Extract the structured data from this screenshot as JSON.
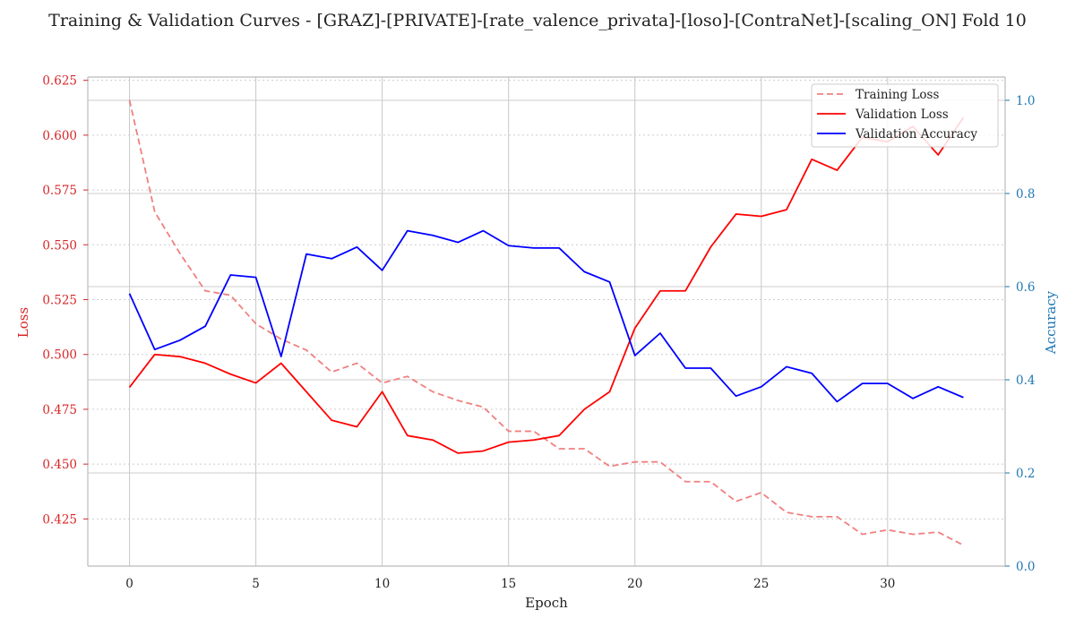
{
  "chart_data": {
    "type": "line",
    "title": "Training & Validation Curves - [GRAZ]-[PRIVATE]-[rate_valence_privata]-[loso]-[ContraNet]-[scaling_ON] Fold 10",
    "xlabel": "Epoch",
    "ylabel_left": "Loss",
    "ylabel_right": "Accuracy",
    "xlim": [
      -1.65,
      34.65
    ],
    "ylim_left": [
      0.4035,
      0.6265
    ],
    "ylim_right": [
      0.0,
      1.05
    ],
    "x_ticks": [
      0,
      5,
      10,
      15,
      20,
      25,
      30
    ],
    "y_left_ticks": [
      0.425,
      0.45,
      0.475,
      0.5,
      0.525,
      0.55,
      0.575,
      0.6,
      0.625
    ],
    "y_right_ticks": [
      0.0,
      0.2,
      0.4,
      0.6,
      0.8,
      1.0
    ],
    "epochs": [
      0,
      1,
      2,
      3,
      4,
      5,
      6,
      7,
      8,
      9,
      10,
      11,
      12,
      13,
      14,
      15,
      16,
      17,
      18,
      19,
      20,
      21,
      22,
      23,
      24,
      25,
      26,
      27,
      28,
      29,
      30,
      31,
      32,
      33
    ],
    "series": [
      {
        "name": "Training Loss",
        "axis": "left",
        "color": "#F08080",
        "style": "dashed",
        "values": [
          0.616,
          0.565,
          0.546,
          0.529,
          0.527,
          0.514,
          0.507,
          0.502,
          0.492,
          0.496,
          0.487,
          0.49,
          0.483,
          0.479,
          0.476,
          0.465,
          0.465,
          0.457,
          0.457,
          0.449,
          0.451,
          0.451,
          0.442,
          0.442,
          0.433,
          0.437,
          0.428,
          0.426,
          0.426,
          0.418,
          0.42,
          0.418,
          0.419,
          0.413
        ]
      },
      {
        "name": "Validation Loss",
        "axis": "left",
        "color": "#FF0000",
        "style": "solid",
        "values": [
          0.485,
          0.5,
          0.499,
          0.496,
          0.491,
          0.487,
          0.496,
          0.483,
          0.47,
          0.467,
          0.483,
          0.463,
          0.461,
          0.455,
          0.456,
          0.46,
          0.461,
          0.463,
          0.475,
          0.483,
          0.512,
          0.529,
          0.529,
          0.549,
          0.564,
          0.563,
          0.566,
          0.589,
          0.584,
          0.599,
          0.597,
          0.604,
          0.591,
          0.608
        ]
      },
      {
        "name": "Validation Accuracy",
        "axis": "right",
        "color": "#0000FF",
        "style": "solid",
        "values": [
          0.585,
          0.465,
          0.485,
          0.515,
          0.625,
          0.62,
          0.45,
          0.67,
          0.66,
          0.685,
          0.635,
          0.72,
          0.71,
          0.695,
          0.72,
          0.688,
          0.683,
          0.683,
          0.632,
          0.61,
          0.452,
          0.5,
          0.425,
          0.425,
          0.365,
          0.385,
          0.428,
          0.414,
          0.353,
          0.392,
          0.392,
          0.36,
          0.385,
          0.362
        ]
      }
    ],
    "legend": {
      "placement": "top-right",
      "entries": [
        "Training Loss",
        "Validation Loss",
        "Validation Accuracy"
      ]
    },
    "grid": true,
    "colors": {
      "left_axis": "#D62728",
      "right_axis": "#1F77B4",
      "grid": "#CCCCCC",
      "frame": "#BBBBBB"
    }
  }
}
